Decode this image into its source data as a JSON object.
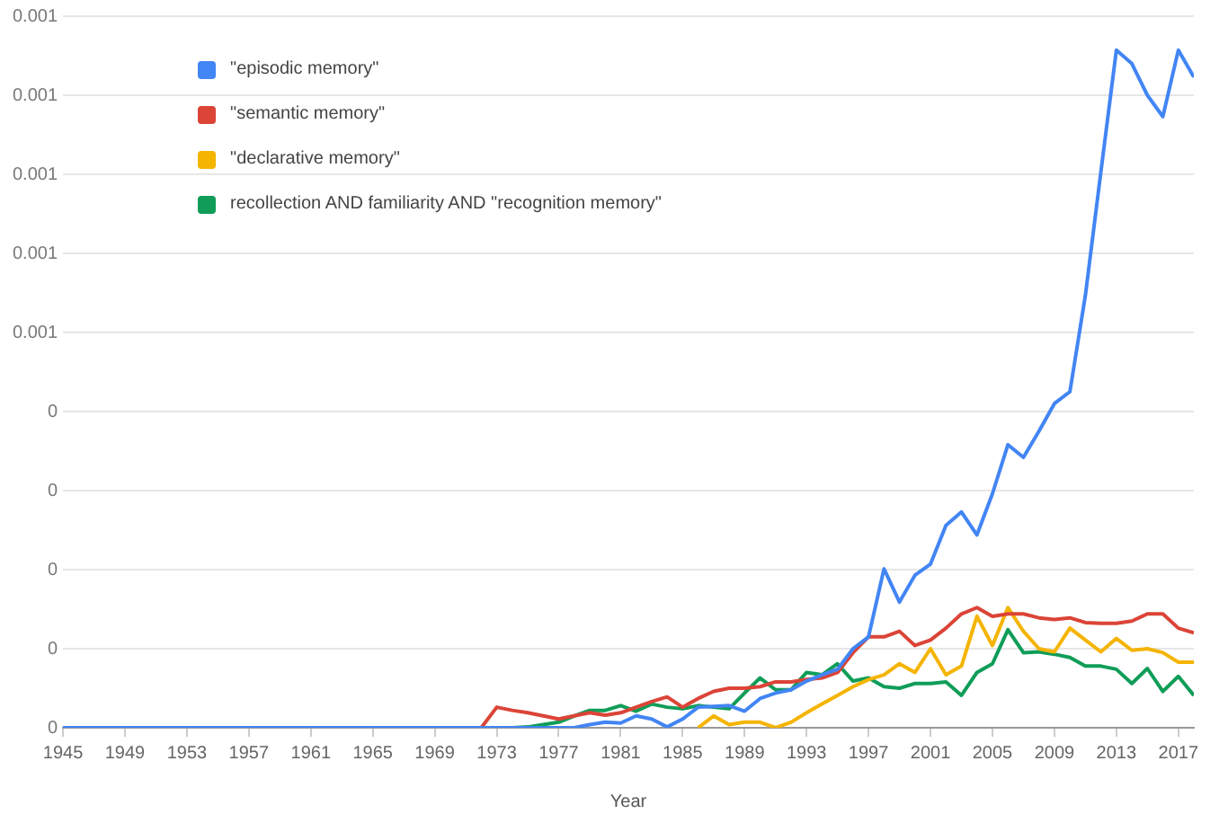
{
  "chart_data": {
    "type": "line",
    "xlabel": "Year",
    "x": [
      1945,
      1946,
      1947,
      1948,
      1949,
      1950,
      1951,
      1952,
      1953,
      1954,
      1955,
      1956,
      1957,
      1958,
      1959,
      1960,
      1961,
      1962,
      1963,
      1964,
      1965,
      1966,
      1967,
      1968,
      1969,
      1970,
      1971,
      1972,
      1973,
      1974,
      1975,
      1976,
      1977,
      1978,
      1979,
      1980,
      1981,
      1982,
      1983,
      1984,
      1985,
      1986,
      1987,
      1988,
      1989,
      1990,
      1991,
      1992,
      1993,
      1994,
      1995,
      1996,
      1997,
      1998,
      1999,
      2000,
      2001,
      2002,
      2003,
      2004,
      2005,
      2006,
      2007,
      2008,
      2009,
      2010,
      2011,
      2012,
      2013,
      2014,
      2015,
      2016,
      2017,
      2018
    ],
    "series": [
      {
        "name": "\"episodic memory\"",
        "color": "#4285f4",
        "values": [
          0,
          0,
          0,
          0,
          0,
          0,
          0,
          0,
          0,
          0,
          0,
          0,
          0,
          0,
          0,
          0,
          0,
          0,
          0,
          0,
          0,
          0,
          0,
          0,
          0,
          0,
          0,
          0,
          0,
          0,
          0,
          0,
          0,
          0,
          4e-06,
          7e-06,
          6e-06,
          1.5e-05,
          1.1e-05,
          1e-06,
          1.1e-05,
          2.6e-05,
          2.7e-05,
          2.8e-05,
          2.1e-05,
          3.7e-05,
          4.4e-05,
          4.8e-05,
          5.9e-05,
          6.7e-05,
          7.4e-05,
          0.0001,
          0.000115,
          0.000201,
          0.000159,
          0.000193,
          0.000207,
          0.000256,
          0.000273,
          0.000244,
          0.000296,
          0.000358,
          0.000342,
          0.000375,
          0.00041,
          0.000425,
          0.000547,
          0.000703,
          0.000857,
          0.00084,
          0.0008,
          0.000773,
          0.000857,
          0.000823
        ]
      },
      {
        "name": "\"semantic memory\"",
        "color": "#db4437",
        "values": [
          null,
          null,
          null,
          null,
          null,
          null,
          null,
          null,
          null,
          null,
          null,
          null,
          null,
          null,
          null,
          null,
          null,
          null,
          null,
          null,
          null,
          null,
          null,
          null,
          null,
          null,
          null,
          0,
          2.6e-05,
          2.2e-05,
          1.9e-05,
          1.5e-05,
          1.1e-05,
          1.5e-05,
          1.9e-05,
          1.6e-05,
          1.9e-05,
          2.6e-05,
          3.3e-05,
          3.9e-05,
          2.6e-05,
          3.7e-05,
          4.6e-05,
          5e-05,
          5e-05,
          5.2e-05,
          5.8e-05,
          5.8e-05,
          6.1e-05,
          6.3e-05,
          7e-05,
          9.5e-05,
          0.000115,
          0.000115,
          0.000122,
          0.000104,
          0.000111,
          0.000126,
          0.000144,
          0.000152,
          0.000141,
          0.000144,
          0.000144,
          0.000139,
          0.000137,
          0.000139,
          0.000133,
          0.000132,
          0.000132,
          0.000135,
          0.000144,
          0.000144,
          0.000126,
          0.00012
        ]
      },
      {
        "name": "\"declarative memory\"",
        "color": "#f4b400",
        "values": [
          null,
          null,
          null,
          null,
          null,
          null,
          null,
          null,
          null,
          null,
          null,
          null,
          null,
          null,
          null,
          null,
          null,
          null,
          null,
          null,
          null,
          null,
          null,
          null,
          null,
          null,
          null,
          null,
          null,
          null,
          null,
          null,
          null,
          null,
          null,
          null,
          null,
          null,
          null,
          null,
          null,
          0,
          1.5e-05,
          4e-06,
          7e-06,
          7e-06,
          0,
          7e-06,
          1.9e-05,
          3e-05,
          4.1e-05,
          5.2e-05,
          6.1e-05,
          6.7e-05,
          8.1e-05,
          7e-05,
          0.0001,
          6.7e-05,
          7.8e-05,
          0.000141,
          0.000104,
          0.000152,
          0.000122,
          0.0001,
          9.6e-05,
          0.000126,
          0.000111,
          9.6e-05,
          0.000113,
          9.8e-05,
          0.0001,
          9.5e-05,
          8.3e-05,
          8.3e-05
        ]
      },
      {
        "name": "recollection AND familiarity AND \"recognition memory\"",
        "color": "#0f9d58",
        "values": [
          null,
          null,
          null,
          null,
          null,
          null,
          null,
          null,
          null,
          null,
          null,
          null,
          null,
          null,
          null,
          null,
          null,
          null,
          null,
          null,
          null,
          null,
          null,
          null,
          null,
          null,
          null,
          null,
          null,
          0,
          1e-06,
          4e-06,
          7e-06,
          1.5e-05,
          2.2e-05,
          2.2e-05,
          2.8e-05,
          2.1e-05,
          3e-05,
          2.6e-05,
          2.4e-05,
          2.8e-05,
          2.6e-05,
          2.4e-05,
          4.4e-05,
          6.3e-05,
          4.8e-05,
          4.8e-05,
          7e-05,
          6.7e-05,
          8.1e-05,
          5.9e-05,
          6.3e-05,
          5.2e-05,
          5e-05,
          5.6e-05,
          5.6e-05,
          5.8e-05,
          4.1e-05,
          7e-05,
          8.1e-05,
          0.000124,
          9.5e-05,
          9.6e-05,
          9.3e-05,
          8.9e-05,
          7.8e-05,
          7.8e-05,
          7.4e-05,
          5.6e-05,
          7.5e-05,
          4.6e-05,
          6.5e-05,
          4.1e-05
        ]
      }
    ],
    "xlim": [
      1945,
      2018
    ],
    "xticks": [
      1945,
      1949,
      1953,
      1957,
      1961,
      1965,
      1969,
      1973,
      1977,
      1981,
      1985,
      1989,
      1993,
      1997,
      2001,
      2005,
      2009,
      2013,
      2017
    ],
    "ylim": [
      0,
      0.0009
    ],
    "yticks": [
      {
        "value": 0,
        "label": "0"
      },
      {
        "value": 0.0001,
        "label": "0"
      },
      {
        "value": 0.0002,
        "label": "0"
      },
      {
        "value": 0.0003,
        "label": "0"
      },
      {
        "value": 0.0004,
        "label": "0"
      },
      {
        "value": 0.0005,
        "label": "0.001"
      },
      {
        "value": 0.0006,
        "label": "0.001"
      },
      {
        "value": 0.0007,
        "label": "0.001"
      },
      {
        "value": 0.0008,
        "label": "0.001"
      },
      {
        "value": 0.0009,
        "label": "0.001"
      }
    ],
    "grid": "y",
    "legend": "top left",
    "marker": "none",
    "line_style": "solid"
  }
}
